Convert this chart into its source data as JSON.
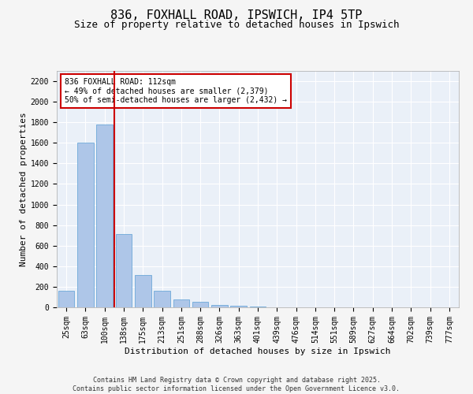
{
  "title_line1": "836, FOXHALL ROAD, IPSWICH, IP4 5TP",
  "title_line2": "Size of property relative to detached houses in Ipswich",
  "xlabel": "Distribution of detached houses by size in Ipswich",
  "ylabel": "Number of detached properties",
  "categories": [
    "25sqm",
    "63sqm",
    "100sqm",
    "138sqm",
    "175sqm",
    "213sqm",
    "251sqm",
    "288sqm",
    "326sqm",
    "363sqm",
    "401sqm",
    "439sqm",
    "476sqm",
    "514sqm",
    "551sqm",
    "589sqm",
    "627sqm",
    "664sqm",
    "702sqm",
    "739sqm",
    "777sqm"
  ],
  "values": [
    160,
    1600,
    1780,
    710,
    315,
    160,
    80,
    50,
    25,
    15,
    5,
    0,
    0,
    0,
    0,
    0,
    0,
    0,
    0,
    0,
    0
  ],
  "bar_color": "#aec6e8",
  "bar_edge_color": "#5a9fd4",
  "vline_x": 2.5,
  "vline_color": "#cc0000",
  "annotation_text": "836 FOXHALL ROAD: 112sqm\n← 49% of detached houses are smaller (2,379)\n50% of semi-detached houses are larger (2,432) →",
  "annotation_box_color": "#ffffff",
  "annotation_box_edge_color": "#cc0000",
  "ylim": [
    0,
    2300
  ],
  "yticks": [
    0,
    200,
    400,
    600,
    800,
    1000,
    1200,
    1400,
    1600,
    1800,
    2000,
    2200
  ],
  "bg_color": "#eaf0f8",
  "grid_color": "#ffffff",
  "footer_line1": "Contains HM Land Registry data © Crown copyright and database right 2025.",
  "footer_line2": "Contains public sector information licensed under the Open Government Licence v3.0.",
  "title_fontsize": 11,
  "subtitle_fontsize": 9,
  "axis_label_fontsize": 8,
  "tick_fontsize": 7,
  "annotation_fontsize": 7,
  "footer_fontsize": 6,
  "fig_width": 6.0,
  "fig_height": 5.0,
  "fig_dpi": 100
}
